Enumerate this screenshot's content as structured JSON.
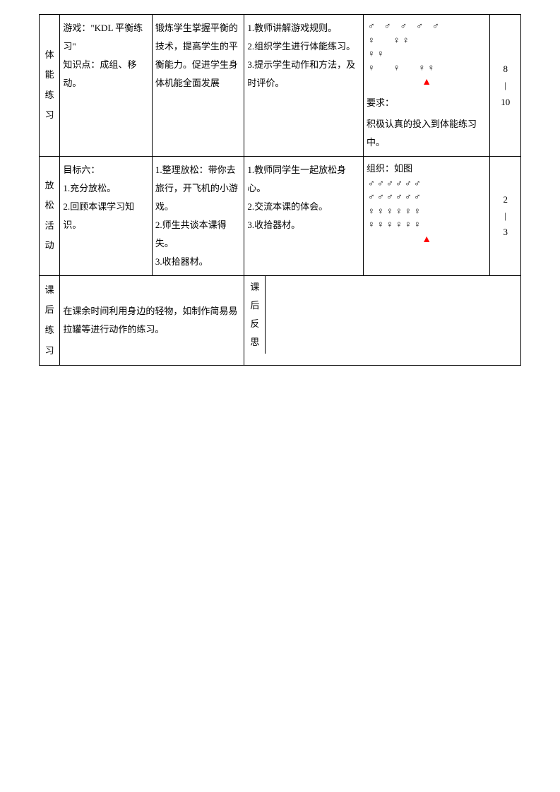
{
  "rows": {
    "r1": {
      "label": "体能练习",
      "c1": "游戏：\"KDL 平衡练习\"\n知识点：成组、移动。",
      "c2": "锻炼学生掌握平衡的技术，提高学生的平衡能力。促进学生身体机能全面发展",
      "c3": "1.教师讲解游戏规则。\n2.组织学生进行体能练习。\n3.提示学生动作和方法，及时评价。",
      "formation": {
        "lines": [
          "♂　♂　♂　♂　♂",
          "♀　　♀ ♀",
          "♀ ♀",
          "♀　　♀　　♀ ♀"
        ],
        "triangle": "▲",
        "req_label": "要求：",
        "req_text": "积极认真的投入到体能练习中。"
      },
      "time": "8\n|\n10"
    },
    "r2": {
      "label": "放松活动",
      "c1": "目标六：\n1.充分放松。\n2.回顾本课学习知识。",
      "c2": "1.整理放松：带你去旅行，开飞机的小游戏。\n2.师生共谈本课得失。\n3.收拾器材。",
      "c3": "1.教师同学生一起放松身心。\n2.交流本课的体会。\n3.收拾器材。",
      "formation": {
        "org_label": "组织：如图",
        "lines": [
          "♂ ♂ ♂ ♂ ♂ ♂",
          "♂ ♂ ♂ ♂ ♂ ♂",
          "♀ ♀ ♀ ♀ ♀ ♀",
          "♀ ♀ ♀ ♀ ♀ ♀"
        ],
        "triangle": "▲"
      },
      "time": "2\n|\n3"
    },
    "r3": {
      "label": "课后练习",
      "text": "在课余时间利用身边的轻物，如制作简易易拉罐等进行动作的练习。",
      "kh_label": "课后反思",
      "kh_text": ""
    }
  }
}
